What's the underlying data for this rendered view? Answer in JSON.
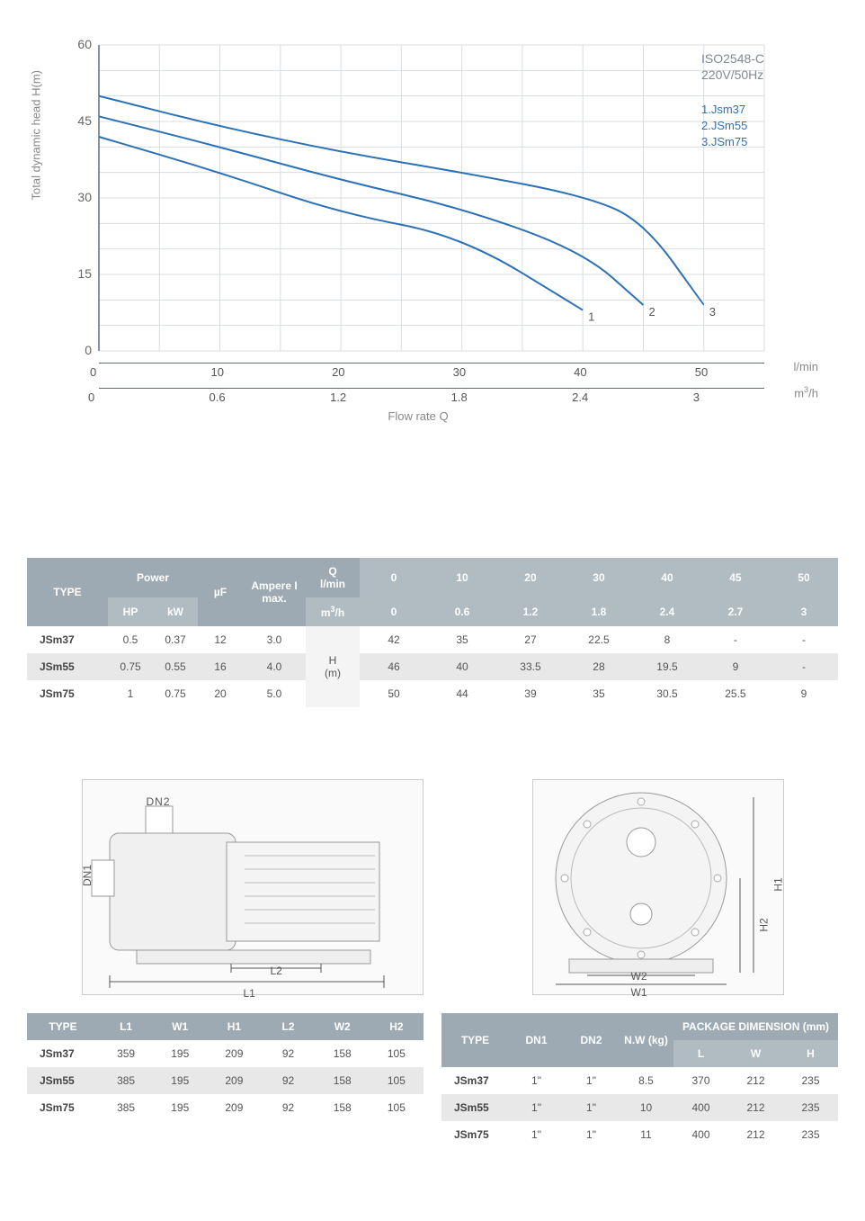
{
  "chart": {
    "type": "line",
    "ylabel": "Total dynamic head H(m)",
    "xlabel": "Flow rate Q",
    "xunit1": "l/min",
    "xunit2": "m³/h",
    "ylim": [
      0,
      60
    ],
    "ytick_step": 15,
    "yticks": [
      0,
      15,
      30,
      45,
      60
    ],
    "x1_ticks": [
      0,
      10,
      20,
      30,
      40,
      50
    ],
    "x2_ticks": [
      0,
      0.6,
      1.2,
      1.8,
      2.4,
      3.0
    ],
    "x1_lim": [
      0,
      55
    ],
    "grid_color": "#d9dde1",
    "axis_color": "#5f6f7d",
    "background_color": "#ffffff",
    "line_color": "#2d71b5",
    "line_width": 2,
    "info_box": {
      "line1": "ISO2548-C",
      "line2": "220V/50Hz",
      "color": "#7f8a93"
    },
    "legend": [
      {
        "num": "1.",
        "label": "Jsm37"
      },
      {
        "num": "2.",
        "label": "JSm55"
      },
      {
        "num": "3.",
        "label": "JSm75"
      }
    ],
    "series": [
      {
        "id": "1",
        "points": [
          [
            0,
            42
          ],
          [
            10,
            35
          ],
          [
            20,
            27
          ],
          [
            30,
            22.5
          ],
          [
            40,
            8
          ]
        ]
      },
      {
        "id": "2",
        "points": [
          [
            0,
            46
          ],
          [
            10,
            40
          ],
          [
            20,
            33.5
          ],
          [
            30,
            28
          ],
          [
            40,
            19.5
          ],
          [
            45,
            9
          ]
        ]
      },
      {
        "id": "3",
        "points": [
          [
            0,
            50
          ],
          [
            10,
            44
          ],
          [
            20,
            39
          ],
          [
            30,
            35
          ],
          [
            40,
            30.5
          ],
          [
            45,
            25.5
          ],
          [
            50,
            9
          ]
        ]
      }
    ]
  },
  "perf_table": {
    "header": {
      "type": "TYPE",
      "power": "Power",
      "hp": "HP",
      "kw": "kW",
      "uf": "µF",
      "amp": "Ampere I max.",
      "q": "Q",
      "q1": "l/min",
      "q2": "m³/h",
      "q1v": [
        "0",
        "10",
        "20",
        "30",
        "40",
        "45",
        "50"
      ],
      "q2v": [
        "0",
        "0.6",
        "1.2",
        "1.8",
        "2.4",
        "2.7",
        "3"
      ],
      "h": "H (m)"
    },
    "rows": [
      {
        "type": "JSm37",
        "hp": "0.5",
        "kw": "0.37",
        "uf": "12",
        "amp": "3.0",
        "h": [
          "42",
          "35",
          "27",
          "22.5",
          "8",
          "-",
          "-"
        ]
      },
      {
        "type": "JSm55",
        "hp": "0.75",
        "kw": "0.55",
        "uf": "16",
        "amp": "4.0",
        "h": [
          "46",
          "40",
          "33.5",
          "28",
          "19.5",
          "9",
          "-"
        ]
      },
      {
        "type": "JSm75",
        "hp": "1",
        "kw": "0.75",
        "uf": "20",
        "amp": "5.0",
        "h": [
          "50",
          "44",
          "39",
          "35",
          "30.5",
          "25.5",
          "9"
        ]
      }
    ]
  },
  "diagram_labels": {
    "dn1": "DN1",
    "dn2": "DN2",
    "l1": "L1",
    "l2": "L2",
    "w1": "W1",
    "w2": "W2",
    "h1": "H1",
    "h2": "H2"
  },
  "dim_table": {
    "header": {
      "type": "TYPE",
      "l1": "L1",
      "w1": "W1",
      "h1": "H1",
      "l2": "L2",
      "w2": "W2",
      "h2": "H2"
    },
    "rows": [
      {
        "type": "JSm37",
        "l1": "359",
        "w1": "195",
        "h1": "209",
        "l2": "92",
        "w2": "158",
        "h2": "105"
      },
      {
        "type": "JSm55",
        "l1": "385",
        "w1": "195",
        "h1": "209",
        "l2": "92",
        "w2": "158",
        "h2": "105"
      },
      {
        "type": "JSm75",
        "l1": "385",
        "w1": "195",
        "h1": "209",
        "l2": "92",
        "w2": "158",
        "h2": "105"
      }
    ]
  },
  "pkg_table": {
    "header": {
      "type": "TYPE",
      "dn1": "DN1",
      "dn2": "DN2",
      "nw": "N.W (kg)",
      "pkg": "PACKAGE DIMENSION (mm)",
      "l": "L",
      "w": "W",
      "h": "H"
    },
    "rows": [
      {
        "type": "JSm37",
        "dn1": "1\"",
        "dn2": "1\"",
        "nw": "8.5",
        "l": "370",
        "w": "212",
        "h": "235"
      },
      {
        "type": "JSm55",
        "dn1": "1\"",
        "dn2": "1\"",
        "nw": "10",
        "l": "400",
        "w": "212",
        "h": "235"
      },
      {
        "type": "JSm75",
        "dn1": "1\"",
        "dn2": "1\"",
        "nw": "11",
        "l": "400",
        "w": "212",
        "h": "235"
      }
    ]
  }
}
